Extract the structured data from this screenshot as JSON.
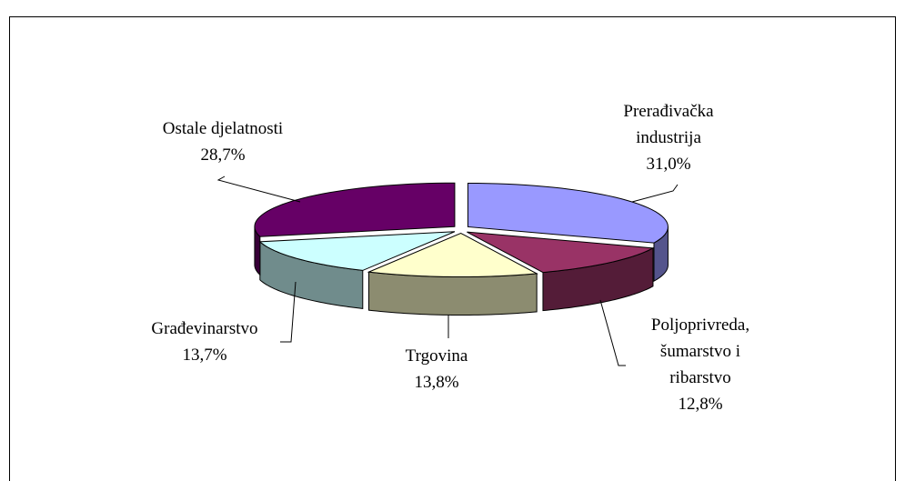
{
  "chart_data": {
    "type": "pie",
    "categories": [
      "Prerađivačka industrija",
      "Poljoprivreda, šumarstvo i ribarstvo",
      "Trgovina",
      "Građevinarstvo",
      "Ostale djelatnosti"
    ],
    "values": [
      31.0,
      12.8,
      13.8,
      13.7,
      28.7
    ],
    "value_labels": [
      "31,0%",
      "12,8%",
      "13,8%",
      "13,7%",
      "28,7%"
    ],
    "colors": [
      "#9999ff",
      "#993366",
      "#ffffcc",
      "#ccffff",
      "#660066"
    ]
  }
}
